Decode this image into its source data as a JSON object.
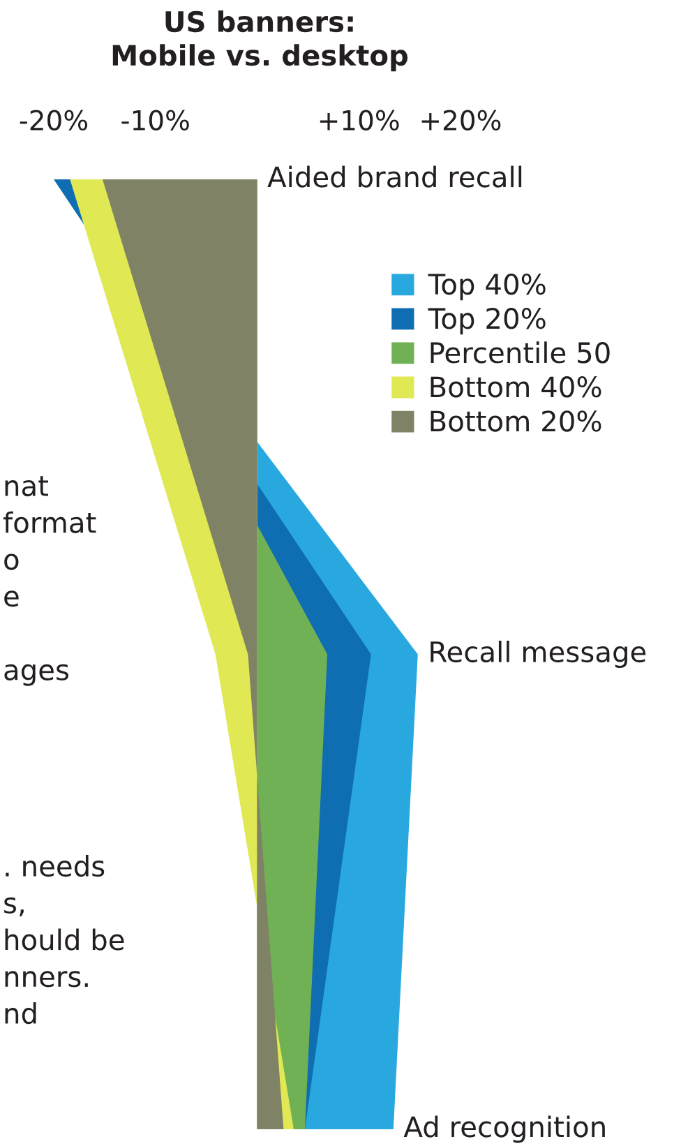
{
  "chart_data": {
    "type": "area",
    "orientation": "horizontal",
    "title": "US banners:\nMobile vs. desktop",
    "categories": [
      "Aided brand recall",
      "Recall message",
      "Ad recognition"
    ],
    "xlim": [
      -20,
      20
    ],
    "xticks": [
      {
        "value": -20,
        "label": "-20%"
      },
      {
        "value": -10,
        "label": "-10%"
      },
      {
        "value": 10,
        "label": "+10%"
      },
      {
        "value": 20,
        "label": "+20%"
      }
    ],
    "series": [
      {
        "name": "Top 40%",
        "color": "#29a8e0",
        "values": [
          -19.5,
          15.8,
          13.4
        ]
      },
      {
        "name": "Top 20%",
        "color": "#0f6db2",
        "values": [
          -20,
          11.2,
          4.7
        ]
      },
      {
        "name": "Percentile 50",
        "color": "#70b155",
        "values": [
          -18.4,
          6.9,
          4.7
        ]
      },
      {
        "name": "Bottom 40%",
        "color": "#e0e854",
        "values": [
          -18.4,
          -4.1,
          3.6
        ]
      },
      {
        "name": "Bottom 20%",
        "color": "#7f8264",
        "values": [
          -15.2,
          -0.9,
          2.6
        ]
      }
    ],
    "annotations": [
      "nat\nformat\no\ne\n\nages",
      ". needs\ns,\nhould be\nnners.\nnd"
    ],
    "legend": "top right",
    "grid": false
  }
}
